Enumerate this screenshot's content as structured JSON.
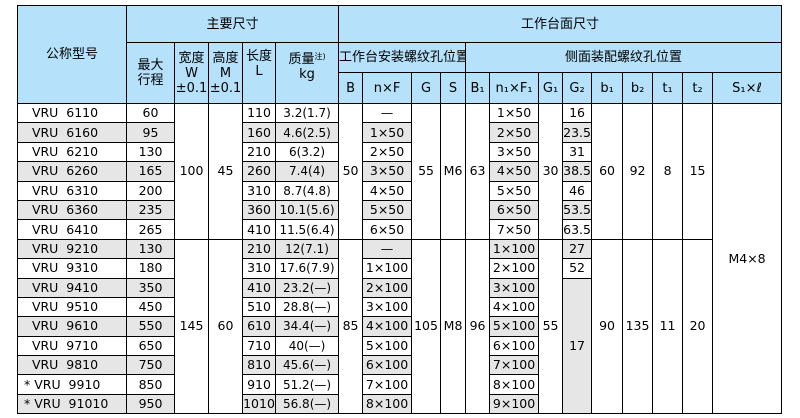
{
  "header": {
    "model": "公称型号",
    "main_dims": "主要尺寸",
    "table_dims": "工作台面尺寸",
    "stroke": [
      "最大",
      "行程"
    ],
    "width": [
      "宽度",
      "W",
      "±0.1"
    ],
    "height": [
      "高度",
      "M",
      "±0.1"
    ],
    "length": [
      "长度",
      "L"
    ],
    "mass": [
      "质量",
      "注)",
      "kg"
    ],
    "top_mount": "工作台安装螺纹孔位置",
    "side_mount": "侧面装配螺纹孔位置",
    "cols": [
      "B",
      "n×F",
      "G",
      "S",
      "B₁",
      "n₁×F₁",
      "G₁",
      "G₂",
      "b₁",
      "b₂",
      "t₁",
      "t₂",
      "S₁×ℓ"
    ]
  },
  "groups": [
    {
      "W": "100",
      "M": "45",
      "B": "50",
      "G": "55",
      "S": "M6",
      "B1": "63",
      "G1": "30",
      "b1": "60",
      "b2": "92",
      "t1": "8",
      "t2": "15"
    },
    {
      "W": "145",
      "M": "60",
      "B": "85",
      "G": "105",
      "S": "M8",
      "B1": "96",
      "G1": "55",
      "b1": "90",
      "b2": "135",
      "t1": "11",
      "t2": "20"
    }
  ],
  "s1l": "M4×8",
  "g2_merged": "17",
  "rows": [
    {
      "model": "  VRU  6110",
      "stroke": "60",
      "L": "110",
      "mass": "3.2(1.7)",
      "nF": "—",
      "n1F1": "1×50",
      "G2": "16"
    },
    {
      "model": "  VRU  6160",
      "stroke": "95",
      "L": "160",
      "mass": "4.6(2.5)",
      "nF": "1×50",
      "n1F1": "2×50",
      "G2": "23.5"
    },
    {
      "model": "  VRU  6210",
      "stroke": "130",
      "L": "210",
      "mass": "6(3.2)",
      "nF": "2×50",
      "n1F1": "3×50",
      "G2": "31"
    },
    {
      "model": "  VRU  6260",
      "stroke": "165",
      "L": "260",
      "mass": "7.4(4)",
      "nF": "3×50",
      "n1F1": "4×50",
      "G2": "38.5"
    },
    {
      "model": "  VRU  6310",
      "stroke": "200",
      "L": "310",
      "mass": "8.7(4.8)",
      "nF": "4×50",
      "n1F1": "5×50",
      "G2": "46"
    },
    {
      "model": "  VRU  6360",
      "stroke": "235",
      "L": "360",
      "mass": "10.1(5.6)",
      "nF": "5×50",
      "n1F1": "6×50",
      "G2": "53.5"
    },
    {
      "model": "  VRU  6410",
      "stroke": "265",
      "L": "410",
      "mass": "11.5(6.4)",
      "nF": "6×50",
      "n1F1": "7×50",
      "G2": "63.5"
    },
    {
      "model": "  VRU  9210",
      "stroke": "130",
      "L": "210",
      "mass": "12(7.1)",
      "nF": "—",
      "n1F1": "1×100",
      "G2": "27"
    },
    {
      "model": "  VRU  9310",
      "stroke": "180",
      "L": "310",
      "mass": "17.6(7.9)",
      "nF": "1×100",
      "n1F1": "2×100",
      "G2": "52"
    },
    {
      "model": "  VRU  9410",
      "stroke": "350",
      "L": "410",
      "mass": "23.2(—)",
      "nF": "2×100",
      "n1F1": "3×100"
    },
    {
      "model": "  VRU  9510",
      "stroke": "450",
      "L": "510",
      "mass": "28.8(—)",
      "nF": "3×100",
      "n1F1": "4×100"
    },
    {
      "model": "  VRU  9610",
      "stroke": "550",
      "L": "610",
      "mass": "34.4(—)",
      "nF": "4×100",
      "n1F1": "5×100"
    },
    {
      "model": "  VRU  9710",
      "stroke": "650",
      "L": "710",
      "mass": "40(—)",
      "nF": "5×100",
      "n1F1": "6×100"
    },
    {
      "model": "  VRU  9810",
      "stroke": "750",
      "L": "810",
      "mass": "45.6(—)",
      "nF": "6×100",
      "n1F1": "7×100"
    },
    {
      "model": "* VRU  9910",
      "stroke": "850",
      "L": "910",
      "mass": "51.2(—)",
      "nF": "7×100",
      "n1F1": "8×100"
    },
    {
      "model": "* VRU  91010",
      "stroke": "950",
      "L": "1010",
      "mass": "56.8(—)",
      "nF": "8×100",
      "n1F1": "9×100"
    }
  ],
  "colors": {
    "header_bg": "#b5e2fa",
    "stripe": "#e6e6e6"
  }
}
